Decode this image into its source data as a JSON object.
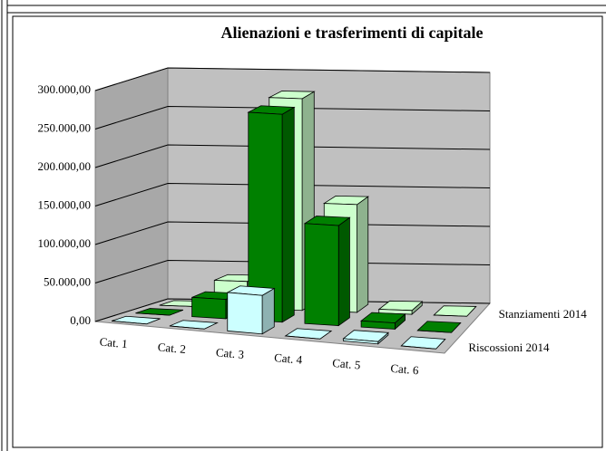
{
  "chart_data": {
    "type": "bar3d",
    "title": "Alienazioni e trasferimenti di capitale",
    "categories": [
      "Cat. 1",
      "Cat. 2",
      "Cat. 3",
      "Cat. 4",
      "Cat. 5",
      "Cat. 6"
    ],
    "series": [
      {
        "name": "Riscossioni   2014",
        "color": "#ccffff",
        "values": [
          0,
          0,
          50000,
          0,
          3000,
          0
        ]
      },
      {
        "color": "#008000",
        "values": [
          0,
          25000,
          270000,
          130000,
          8000,
          0
        ]
      },
      {
        "name": "Stanziamenti 2014",
        "color": "#ccffcc",
        "values": [
          0,
          35000,
          275000,
          140000,
          5000,
          0
        ]
      }
    ],
    "ylim": [
      0,
      300000
    ],
    "yticks": [
      {
        "value": 0,
        "label": "0,00"
      },
      {
        "value": 50000,
        "label": "50.000,00"
      },
      {
        "value": 100000,
        "label": "100.000,00"
      },
      {
        "value": 150000,
        "label": "150.000,00"
      },
      {
        "value": 200000,
        "label": "200.000,00"
      },
      {
        "value": 250000,
        "label": "250.000,00"
      },
      {
        "value": 300000,
        "label": "300.000,00"
      }
    ],
    "grid": true
  }
}
